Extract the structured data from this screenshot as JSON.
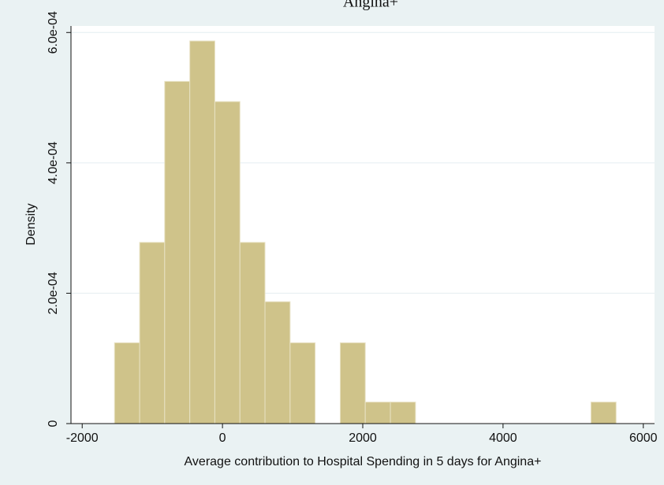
{
  "chart_data": {
    "type": "histogram",
    "title": "Angina+",
    "xlabel": "Average contribution to Hospital Spending in 5 days for Angina+",
    "ylabel": "Density",
    "bins": [
      -1539,
      -1181,
      -824,
      -466,
      -109,
      249,
      606,
      964,
      1321,
      1679,
      2036,
      2394,
      2752,
      3109,
      3467,
      3824,
      4182,
      4539,
      4897,
      5254,
      5612
    ],
    "values": [
      0.000124,
      0.000278,
      0.000525,
      0.000587,
      0.000494,
      0.000278,
      0.000187,
      0.000124,
      0,
      0.000124,
      3.3e-05,
      3.3e-05,
      0,
      0,
      0,
      0,
      0,
      0,
      0,
      3.3e-05
    ],
    "color": "#cfc38a",
    "xlim": [
      -2160,
      6160
    ],
    "xticks": [
      -2000,
      0,
      2000,
      4000,
      6000
    ],
    "ylim": [
      0,
      0.00061
    ],
    "yticks": [
      0,
      {
        "value": 0.0002,
        "label": "2.0e-04"
      },
      {
        "value": 0.0004,
        "label": "4.0e-04"
      },
      {
        "value": 0.0006,
        "label": "6.0e-04"
      }
    ],
    "grid": true
  }
}
